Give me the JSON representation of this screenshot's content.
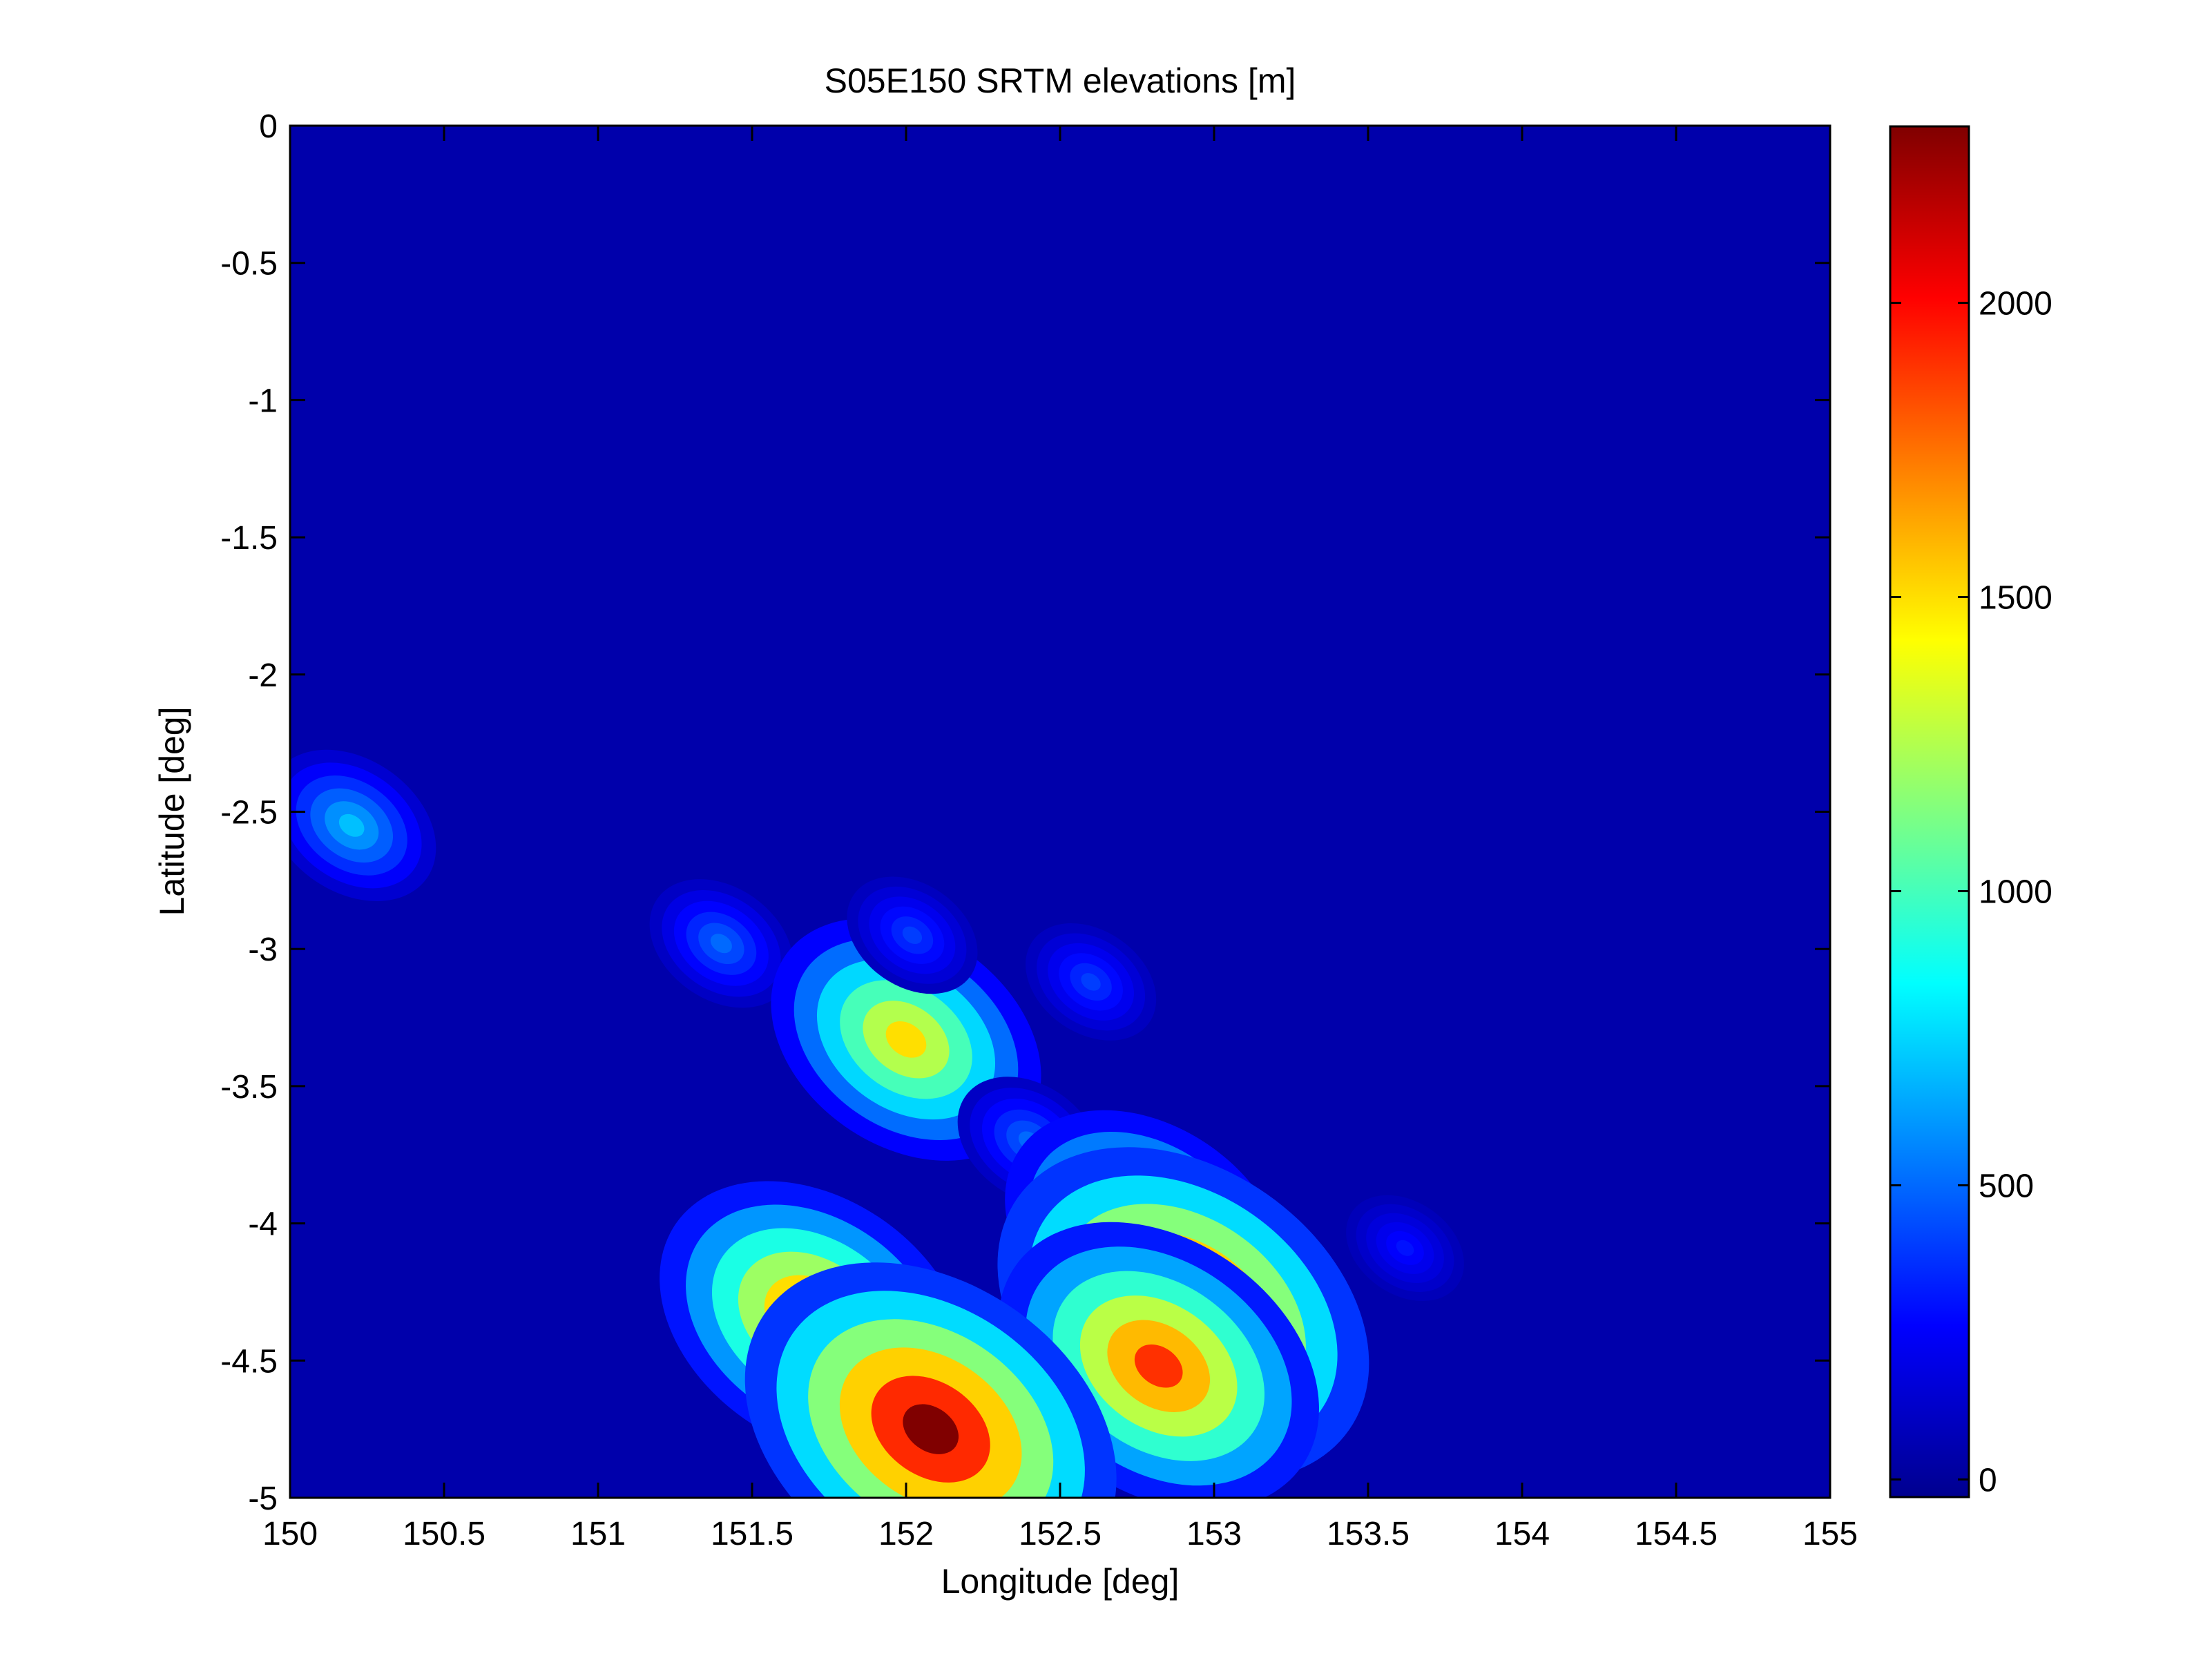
{
  "colors": {
    "background": "#ffffff",
    "ocean": "#0000ab",
    "axis": "#000000",
    "colormap": [
      "#00008f",
      "#0000ff",
      "#0080ff",
      "#00ffff",
      "#80ff80",
      "#ffff00",
      "#ff8000",
      "#ff0000",
      "#800000"
    ]
  },
  "chart_data": {
    "type": "heatmap",
    "title": "S05E150 SRTM elevations [m]",
    "xlabel": "Longitude [deg]",
    "ylabel": "Latitude [deg]",
    "xlim": [
      150,
      155
    ],
    "ylim": [
      -5,
      0
    ],
    "xticks": [
      "150",
      "150.5",
      "151",
      "151.5",
      "152",
      "152.5",
      "153",
      "153.5",
      "154",
      "154.5",
      "155"
    ],
    "yticks": [
      "0",
      "-0.5",
      "-1",
      "-1.5",
      "-2",
      "-2.5",
      "-3",
      "-3.5",
      "-4",
      "-4.5",
      "-5"
    ],
    "grid": false,
    "colorbar": {
      "clim": [
        -30,
        2300
      ],
      "ticks": [
        "0",
        "500",
        "1000",
        "1500",
        "2000"
      ],
      "colormap": "jet"
    },
    "features": [
      {
        "lon": 150.2,
        "lat": -2.55,
        "peak_m": 700
      },
      {
        "lon": 151.4,
        "lat": -2.98,
        "peak_m": 500
      },
      {
        "lon": 152.0,
        "lat": -3.33,
        "peak_m": 1500
      },
      {
        "lon": 152.4,
        "lat": -3.7,
        "peak_m": 500
      },
      {
        "lon": 152.78,
        "lat": -4.05,
        "peak_m": 1600
      },
      {
        "lon": 152.9,
        "lat": -4.33,
        "peak_m": 2300
      },
      {
        "lon": 152.82,
        "lat": -4.52,
        "peak_m": 1900
      },
      {
        "lon": 151.7,
        "lat": -4.35,
        "peak_m": 1800
      },
      {
        "lon": 152.08,
        "lat": -4.75,
        "peak_m": 2300
      },
      {
        "lon": 152.02,
        "lat": -2.95,
        "peak_m": 400
      },
      {
        "lon": 152.6,
        "lat": -3.12,
        "peak_m": 400
      },
      {
        "lon": 153.62,
        "lat": -4.09,
        "peak_m": 300
      }
    ]
  }
}
